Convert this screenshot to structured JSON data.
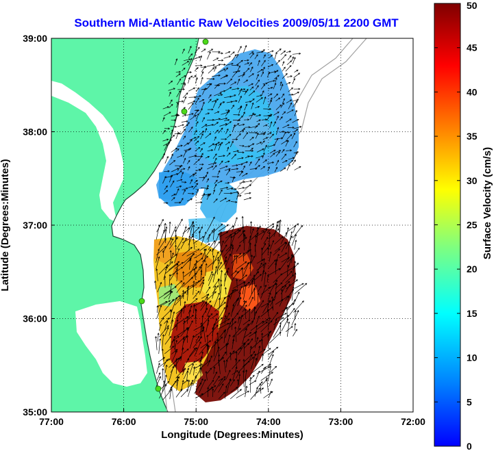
{
  "title": "Southern Mid-Atlantic Raw Velocities 2009/05/11 2200 GMT",
  "title_color": "#0000ff",
  "x_axis": {
    "label": "Longitude (Degrees:Minutes)",
    "ticks": [
      "77:00",
      "76:00",
      "75:00",
      "74:00",
      "73:00",
      "72:00"
    ]
  },
  "y_axis": {
    "label": "Latitude (Degrees:Minutes)",
    "ticks": [
      "39:00",
      "38:00",
      "37:00",
      "36:00",
      "35:00"
    ]
  },
  "colorbar": {
    "label": "Surface Velocity (cm/s)",
    "ticks": [
      "50",
      "45",
      "40",
      "35",
      "30",
      "25",
      "20",
      "15",
      "10",
      "5",
      "0"
    ],
    "colors": [
      "#7f0000",
      "#ff0000",
      "#ff7f00",
      "#ffff00",
      "#7fff7f",
      "#00ffff",
      "#007fff",
      "#0000ff"
    ]
  },
  "map": {
    "land_color": "#5ef5a8",
    "water_color": "#ffffff",
    "coast_color": "#1e4a34",
    "bathymetry_color": "#a0a0a0",
    "site_marker_color": "#4dd91a"
  }
}
